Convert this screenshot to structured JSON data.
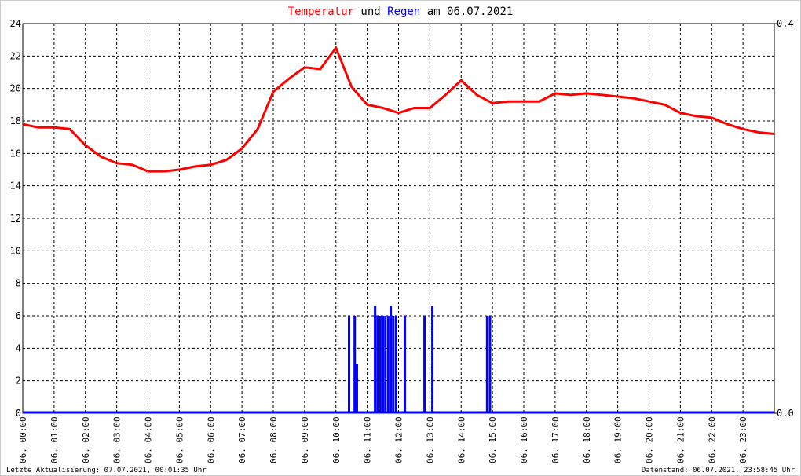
{
  "chart_data": {
    "type": "line",
    "title_parts": [
      {
        "text": "Temperatur",
        "color": "#ff0000"
      },
      {
        "text": "und",
        "color": "#000000"
      },
      {
        "text": "Regen",
        "color": "#0000ff"
      },
      {
        "text": "am 06.07.2021",
        "color": "#000000"
      }
    ],
    "footer_left": "Letzte Aktualisierung: 07.07.2021, 00:01:35 Uhr",
    "footer_right": "Datenstand: 06.07.2021, 23:58:45 Uhr",
    "xlim": [
      0,
      24
    ],
    "xticks": [
      {
        "value": 0,
        "label": "06. 00:00"
      },
      {
        "value": 1,
        "label": "06. 01:00"
      },
      {
        "value": 2,
        "label": "06. 02:00"
      },
      {
        "value": 3,
        "label": "06. 03:00"
      },
      {
        "value": 4,
        "label": "06. 04:00"
      },
      {
        "value": 5,
        "label": "06. 05:00"
      },
      {
        "value": 6,
        "label": "06. 06:00"
      },
      {
        "value": 7,
        "label": "06. 07:00"
      },
      {
        "value": 8,
        "label": "06. 08:00"
      },
      {
        "value": 9,
        "label": "06. 09:00"
      },
      {
        "value": 10,
        "label": "06. 10:00"
      },
      {
        "value": 11,
        "label": "06. 11:00"
      },
      {
        "value": 12,
        "label": "06. 12:00"
      },
      {
        "value": 13,
        "label": "06. 13:00"
      },
      {
        "value": 14,
        "label": "06. 14:00"
      },
      {
        "value": 15,
        "label": "06. 15:00"
      },
      {
        "value": 16,
        "label": "06. 16:00"
      },
      {
        "value": 17,
        "label": "06. 17:00"
      },
      {
        "value": 18,
        "label": "06. 18:00"
      },
      {
        "value": 19,
        "label": "06. 19:00"
      },
      {
        "value": 20,
        "label": "06. 20:00"
      },
      {
        "value": 21,
        "label": "06. 21:00"
      },
      {
        "value": 22,
        "label": "06. 22:00"
      },
      {
        "value": 23,
        "label": "06. 23:00"
      }
    ],
    "ylim": [
      0,
      24
    ],
    "yticks": [
      0,
      2,
      4,
      6,
      8,
      10,
      12,
      14,
      16,
      18,
      20,
      22,
      24
    ],
    "y2lim": [
      0,
      0.4
    ],
    "y2ticks": [
      {
        "value": 0,
        "label": "0.0"
      },
      0.4
    ],
    "grid": true,
    "series": [
      {
        "name": "Temperatur",
        "color": "#ff0000",
        "type": "line",
        "x": [
          0,
          0.5,
          1,
          1.5,
          2,
          2.5,
          3,
          3.5,
          4,
          4.5,
          5,
          5.5,
          6,
          6.5,
          7,
          7.5,
          8,
          8.5,
          9,
          9.5,
          10,
          10.5,
          11,
          11.5,
          12,
          12.5,
          13,
          13.5,
          14,
          14.5,
          15,
          15.5,
          16,
          16.5,
          17,
          17.5,
          18,
          18.5,
          19,
          19.5,
          20,
          20.5,
          21,
          21.5,
          22,
          22.5,
          23,
          23.5,
          24
        ],
        "values": [
          17.8,
          17.6,
          17.6,
          17.5,
          16.5,
          15.8,
          15.4,
          15.3,
          14.9,
          14.9,
          15.0,
          15.2,
          15.3,
          15.6,
          16.3,
          17.5,
          19.8,
          20.6,
          21.3,
          21.2,
          22.5,
          20.1,
          19.0,
          18.8,
          18.5,
          18.8,
          18.8,
          19.6,
          20.5,
          19.6,
          19.1,
          19.2,
          19.2,
          19.2,
          19.7,
          19.6,
          19.7,
          19.6,
          19.5,
          19.4,
          19.2,
          19.0,
          18.5,
          18.3,
          18.2,
          17.8,
          17.5,
          17.3,
          17.2
        ]
      },
      {
        "name": "Regen",
        "color": "#0000ff",
        "type": "bar",
        "axis": "y2",
        "x": [
          10.42,
          10.6,
          10.67,
          11.25,
          11.33,
          11.42,
          11.5,
          11.58,
          11.67,
          11.75,
          11.83,
          11.92,
          12.2,
          12.83,
          13.08,
          14.83,
          14.92
        ],
        "values": [
          0.1,
          0.1,
          0.05,
          0.11,
          0.1,
          0.1,
          0.1,
          0.1,
          0.1,
          0.11,
          0.1,
          0.1,
          0.1,
          0.1,
          0.11,
          0.1,
          0.1
        ]
      }
    ]
  }
}
